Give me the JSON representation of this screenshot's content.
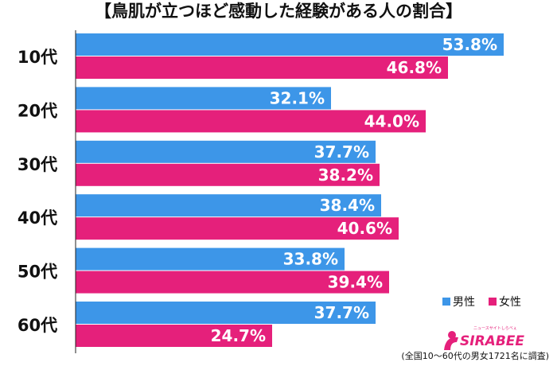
{
  "chart_data": {
    "type": "bar",
    "orientation": "horizontal",
    "title": "【鳥肌が立つほど感動した経験がある人の割合】",
    "categories": [
      "10代",
      "20代",
      "30代",
      "40代",
      "50代",
      "60代"
    ],
    "series": [
      {
        "name": "男性",
        "color": "#3d96e8",
        "values": [
          53.8,
          32.1,
          37.7,
          38.4,
          33.8,
          37.7
        ]
      },
      {
        "name": "女性",
        "color": "#e5207b",
        "values": [
          46.8,
          44.0,
          38.2,
          40.6,
          39.4,
          24.7
        ]
      }
    ],
    "value_suffix": "%",
    "xlim": [
      0,
      58
    ],
    "grid": false,
    "legend_position": "bottom-right",
    "note": "(全国10〜60代の男女1721名に調査)"
  },
  "logo": {
    "text": "SIRABEE",
    "tagline": "ニュースサイトしらべぇ"
  }
}
